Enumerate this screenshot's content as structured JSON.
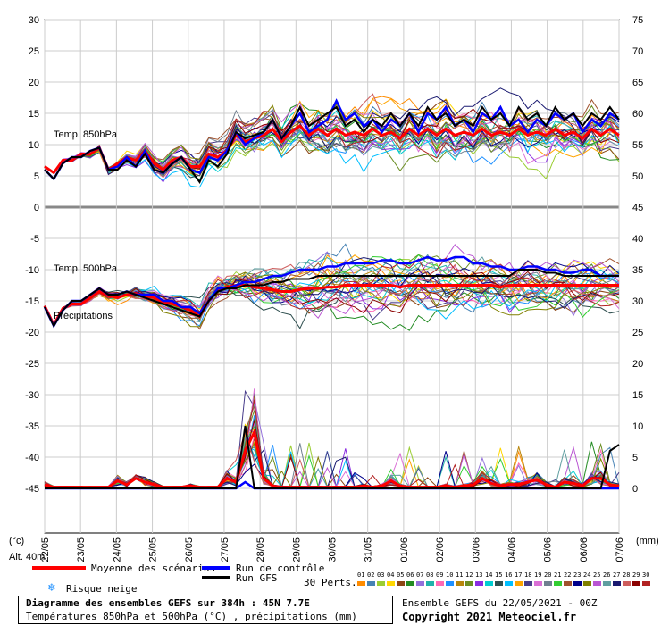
{
  "chart_data": {
    "type": "line",
    "title": "Diagramme des ensembles GEFS sur 384h : 45N 7.7E",
    "subtitle": "Températures 850hPa et 500hPa (°C) , précipitations (mm)",
    "left_axis_unit": "(°c)",
    "right_axis_unit": "(mm)",
    "alt_label": "Alt. 40m",
    "panel_labels": {
      "t850": "Temp. 850hPa",
      "t500": "Temp. 500hPa",
      "precip": "Précipitations"
    },
    "ylim_left": [
      -50,
      30
    ],
    "yticks_left": [
      "30",
      "25",
      "20",
      "15",
      "10",
      "5",
      "0",
      "-5",
      "-10",
      "-15",
      "-20",
      "-25",
      "-30",
      "-35",
      "-40",
      "-45"
    ],
    "yticks_right": [
      "75",
      "70",
      "65",
      "60",
      "55",
      "50",
      "45",
      "40",
      "35",
      "30",
      "25",
      "20",
      "15",
      "10",
      "5",
      "0"
    ],
    "x_labels": [
      "22/05",
      "23/05",
      "24/05",
      "25/05",
      "26/05",
      "27/05",
      "28/05",
      "29/05",
      "30/05",
      "31/05",
      "01/06",
      "02/06",
      "03/06",
      "04/06",
      "05/06",
      "06/06",
      "07/06"
    ],
    "series": [
      {
        "name": "Moyenne des scénarios",
        "t850": [
          6.5,
          5.5,
          7.5,
          7.5,
          8.5,
          8.5,
          9.5,
          6,
          7,
          8,
          7.5,
          9,
          7,
          6,
          7.5,
          8,
          6.5,
          6.5,
          8.5,
          8,
          9,
          11.5,
          10.5,
          11,
          11.5,
          12.5,
          10.5,
          12,
          13,
          11.5,
          12.5,
          11.5,
          12.5,
          11.5,
          12,
          11.5,
          12.5,
          11.5,
          12,
          11,
          12.5,
          11.5,
          12.5,
          11.5,
          12.5,
          11.5,
          12,
          11.5,
          12.5,
          11.5,
          12,
          11.5,
          12.5,
          11.5,
          12,
          11.5,
          12.5,
          11.5,
          12,
          11,
          12.5,
          11.5,
          12.5,
          11.5
        ],
        "t500": [
          -15.8,
          -18.8,
          -16.2,
          -15.5,
          -15.5,
          -14.5,
          -13.5,
          -14.2,
          -14.5,
          -14,
          -13.8,
          -14.2,
          -14.5,
          -15.2,
          -15.5,
          -16,
          -16.5,
          -17.5,
          -15,
          -13.2,
          -12.8,
          -12.5,
          -12.5,
          -12.8,
          -13,
          -13.2,
          -13.5,
          -13.5,
          -13.2,
          -13,
          -13,
          -12.8,
          -12.8,
          -12.5,
          -12.5,
          -12.5,
          -12.5,
          -12.5,
          -12.5,
          -12.8,
          -12.5,
          -12.5,
          -12.5,
          -12.5,
          -12.5,
          -12.5,
          -12.5,
          -12.5,
          -12.5,
          -12.5,
          -12.8,
          -12.5,
          -12.5,
          -12.5,
          -12.5,
          -12.5,
          -12.5,
          -12.5,
          -12.5,
          -12.5,
          -12.5,
          -12.5,
          -12.5,
          -12.5
        ],
        "precip": [
          0.3,
          0.1,
          0.1,
          0.1,
          0.1,
          0.1,
          0.1,
          0.1,
          0.6,
          0.3,
          0.8,
          0.5,
          0.3,
          0.1,
          0.1,
          0.1,
          0.2,
          0.1,
          0.1,
          0.1,
          0.8,
          0.5,
          3,
          4.5,
          0.8,
          0.2,
          0.1,
          0.1,
          0.1,
          0.1,
          0.1,
          0.1,
          0.1,
          0.1,
          0.1,
          0.2,
          0.1,
          0.2,
          0.6,
          0.2,
          0.1,
          0.1,
          0.1,
          0.1,
          0.2,
          0.1,
          0.2,
          0.3,
          0.8,
          0.4,
          0.2,
          0.3,
          0.3,
          0.5,
          0.7,
          0.3,
          0.1,
          0.5,
          0.4,
          0.2,
          0.8,
          0.8,
          0.3,
          0.2
        ]
      },
      {
        "name": "Run de contrôle",
        "t850": [
          6,
          4.5,
          7,
          8,
          8,
          9,
          9.5,
          6,
          6.5,
          8,
          6.5,
          9,
          6,
          5.5,
          7,
          8,
          6,
          5.5,
          8,
          7.5,
          9,
          12,
          10,
          11,
          12,
          14,
          11,
          13,
          15,
          12,
          13,
          14,
          17,
          14,
          15,
          13,
          14,
          12,
          14,
          13,
          15,
          12,
          15,
          14,
          16,
          13,
          14,
          12,
          15,
          14,
          16,
          13,
          14,
          12,
          14,
          13,
          15,
          14,
          15,
          12,
          14,
          13,
          15,
          14
        ],
        "t500": [
          -16,
          -19,
          -16.5,
          -15,
          -15,
          -14,
          -13,
          -14,
          -14,
          -13.5,
          -14,
          -14,
          -14,
          -15,
          -15,
          -16,
          -16,
          -17,
          -15,
          -13,
          -13,
          -12.5,
          -12,
          -12,
          -11.5,
          -11,
          -11,
          -10.5,
          -10,
          -10,
          -10,
          -9.5,
          -9.5,
          -9,
          -9,
          -9,
          -9,
          -8.5,
          -8.5,
          -9,
          -9,
          -8.5,
          -8,
          -8.5,
          -8.5,
          -8,
          -8,
          -9,
          -9,
          -9.5,
          -9.5,
          -10,
          -10,
          -9.5,
          -9.5,
          -10,
          -10,
          -10.5,
          -10.5,
          -10,
          -10,
          -11,
          -11,
          -11
        ],
        "precip": [
          0,
          0,
          0,
          0,
          0,
          0,
          0,
          0,
          0,
          0,
          0,
          0,
          0,
          0,
          0,
          0,
          0,
          0,
          0,
          0,
          0,
          0,
          0.5,
          0,
          0,
          0,
          0,
          0,
          0,
          0,
          0,
          0,
          0,
          0,
          0,
          0,
          0,
          0,
          0,
          0,
          0,
          0,
          0,
          0,
          0,
          0,
          0,
          0,
          0,
          0,
          0,
          0,
          0,
          0,
          0,
          0,
          0,
          0,
          0,
          0,
          0,
          0,
          0,
          0
        ]
      },
      {
        "name": "Run GFS",
        "t850": [
          6,
          4.5,
          7,
          8,
          8,
          9,
          9.5,
          6,
          6,
          7.5,
          6.5,
          8.5,
          6,
          5.5,
          7,
          8,
          6,
          4,
          7.5,
          6.5,
          8.5,
          12,
          11,
          11.5,
          12,
          14,
          11,
          13,
          16,
          13,
          14,
          15,
          16,
          13,
          14,
          12,
          14,
          13,
          15,
          13,
          15,
          13,
          16,
          14,
          15,
          13,
          14,
          13,
          16,
          14,
          15,
          13,
          16,
          14,
          15,
          13,
          16,
          14,
          15,
          13,
          15,
          14,
          16,
          14
        ],
        "t500": [
          -16,
          -19,
          -16.5,
          -15,
          -15,
          -14,
          -13,
          -14,
          -14,
          -13.5,
          -14,
          -14.5,
          -15,
          -15.5,
          -16,
          -16.5,
          -17,
          -17.5,
          -15,
          -13.5,
          -13,
          -13,
          -12.5,
          -12.5,
          -12.5,
          -12,
          -12,
          -11.5,
          -11.5,
          -11.5,
          -11,
          -11,
          -11,
          -11,
          -11,
          -11,
          -11,
          -11,
          -11,
          -11,
          -11,
          -11,
          -11,
          -11,
          -11,
          -11,
          -11,
          -11,
          -11,
          -11,
          -11,
          -11,
          -10,
          -10,
          -10,
          -10.5,
          -10.5,
          -11,
          -11,
          -11,
          -11,
          -11,
          -11,
          -11
        ],
        "precip": [
          0,
          0,
          0,
          0,
          0,
          0,
          0,
          0,
          0,
          0,
          0,
          0,
          0,
          0,
          0,
          0,
          0,
          0,
          0,
          0,
          0,
          0,
          5,
          0,
          0,
          0,
          0,
          0,
          0,
          0,
          0,
          0,
          0,
          0,
          0,
          0,
          0,
          0,
          0,
          0,
          0,
          0,
          0,
          0,
          0,
          0,
          0,
          0,
          0,
          0,
          0,
          0,
          0,
          0,
          0,
          0,
          0,
          0,
          0,
          0,
          0,
          0,
          3,
          3.5
        ]
      }
    ],
    "members": [
      "01",
      "02",
      "03",
      "04",
      "05",
      "06",
      "07",
      "08",
      "09",
      "10",
      "11",
      "12",
      "13",
      "14",
      "15",
      "16",
      "17",
      "18",
      "19",
      "20",
      "21",
      "22",
      "23",
      "24",
      "25",
      "26",
      "27",
      "28",
      "29",
      "30"
    ],
    "member_colors": [
      "#ff8c00",
      "#4682b4",
      "#9acd32",
      "#ffd700",
      "#8b4513",
      "#228b22",
      "#9370db",
      "#20b2aa",
      "#ff69b4",
      "#1e90ff",
      "#b8860b",
      "#6b8e23",
      "#8a2be2",
      "#00ced1",
      "#2f4f4f",
      "#00bfff",
      "#ffa500",
      "#483d8b",
      "#da70d6",
      "#708090",
      "#32cd32",
      "#a0522d",
      "#00008b",
      "#808000",
      "#ba55d3",
      "#5f9ea0",
      "#191970",
      "#cd5c5c",
      "#8b0000",
      "#b22222"
    ]
  },
  "legend": {
    "mean_label": "Moyenne des scénarios",
    "control_label": "Run de contrôle",
    "gfs_label": "Run GFS",
    "snow_label": "Risque neige",
    "perts_label": "30 Perts.",
    "mean_color": "#ff0000",
    "control_color": "#0000ff",
    "gfs_color": "#000000",
    "snow_icon": "snowflake-icon"
  },
  "footer": {
    "title": "Diagramme des ensembles GEFS sur 384h : 45N 7.7E",
    "subtitle": "Températures 850hPa et 500hPa (°C) , précipitations (mm)",
    "run": "Ensemble GEFS du 22/05/2021 - 00Z",
    "copyright": "Copyright 2021 Meteociel.fr"
  }
}
